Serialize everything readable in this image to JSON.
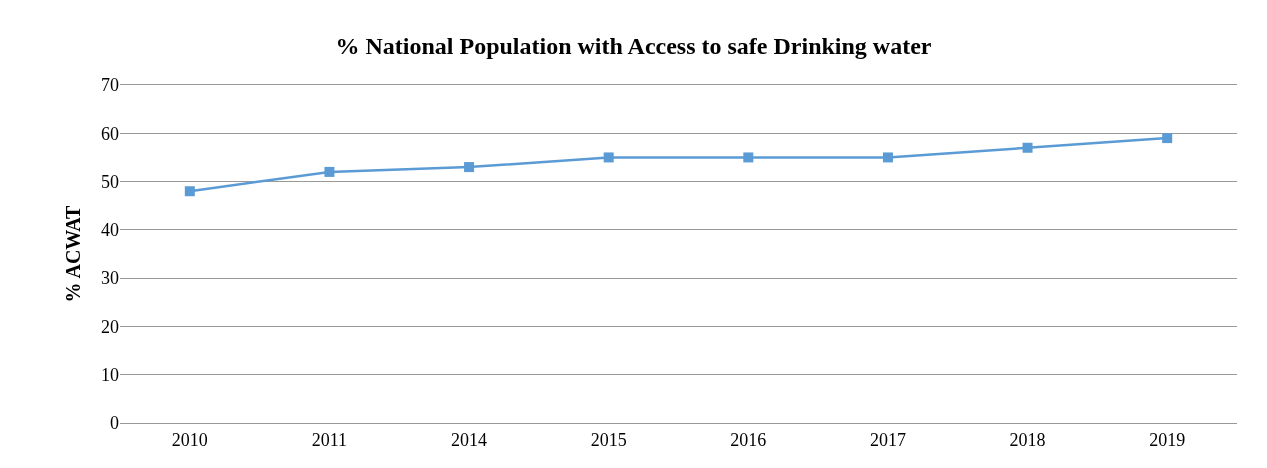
{
  "chart_data": {
    "type": "line",
    "title": "% National Population with Access to safe Drinking water",
    "ylabel": "% ACWAT",
    "categories": [
      "2010",
      "2011",
      "2014",
      "2015",
      "2016",
      "2017",
      "2018",
      "2019"
    ],
    "series": [
      {
        "color": "#5b9bd5",
        "values": [
          48,
          52,
          53,
          55,
          55,
          55,
          57,
          59
        ]
      }
    ],
    "ylim": [
      0,
      70
    ],
    "yticks": [
      0,
      10,
      20,
      30,
      40,
      50,
      60,
      70
    ],
    "grid": "y",
    "marker": "square",
    "line_style": "solid"
  }
}
